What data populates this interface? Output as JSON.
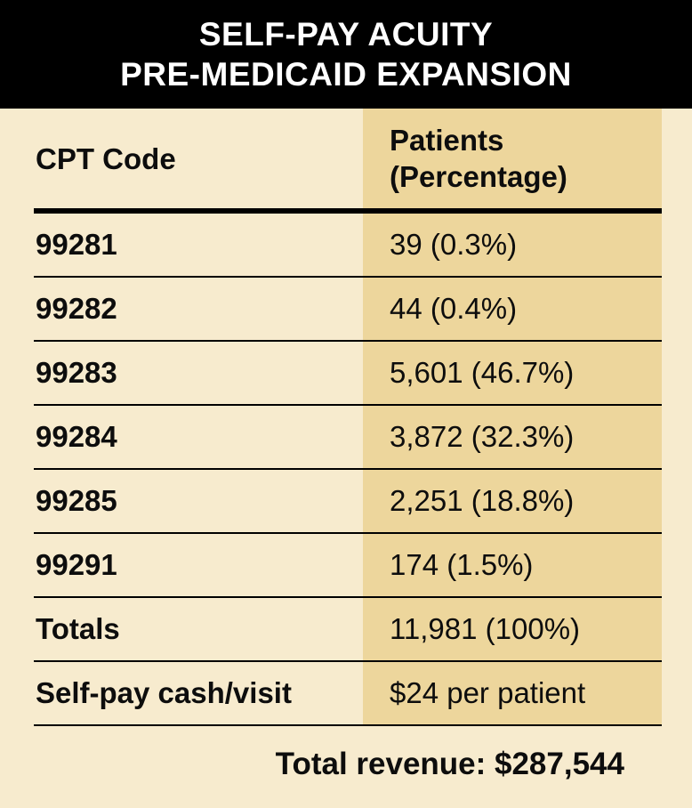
{
  "title": {
    "line1": "SELF-PAY ACUITY",
    "line2": "PRE-MEDICAID EXPANSION"
  },
  "table": {
    "columns": [
      "CPT Code",
      "Patients (Percentage)"
    ],
    "rows": [
      {
        "label": "99281",
        "value": "39 (0.3%)"
      },
      {
        "label": "99282",
        "value": "44 (0.4%)"
      },
      {
        "label": "99283",
        "value": "5,601 (46.7%)"
      },
      {
        "label": "99284",
        "value": "3,872 (32.3%)"
      },
      {
        "label": "99285",
        "value": "2,251 (18.8%)"
      },
      {
        "label": "99291",
        "value": "174 (1.5%)"
      },
      {
        "label": "Totals",
        "value": "11,981 (100%)"
      },
      {
        "label": "Self-pay cash/visit",
        "value": "$24 per patient"
      }
    ],
    "footer": "Total revenue: $287,544"
  },
  "colors": {
    "title_bg": "#000000",
    "title_text": "#ffffff",
    "page_bg": "#f7ebce",
    "value_column_bg": "#edd69c",
    "rule": "#000000"
  },
  "chart_data": {
    "type": "table",
    "title": "SELF-PAY ACUITY PRE-MEDICAID EXPANSION",
    "columns": [
      "CPT Code",
      "Patients (Percentage)"
    ],
    "rows": [
      {
        "cpt_code": "99281",
        "patients": 39,
        "percentage": 0.3
      },
      {
        "cpt_code": "99282",
        "patients": 44,
        "percentage": 0.4
      },
      {
        "cpt_code": "99283",
        "patients": 5601,
        "percentage": 46.7
      },
      {
        "cpt_code": "99284",
        "patients": 3872,
        "percentage": 32.3
      },
      {
        "cpt_code": "99285",
        "patients": 2251,
        "percentage": 18.8
      },
      {
        "cpt_code": "99291",
        "patients": 174,
        "percentage": 1.5
      }
    ],
    "totals": {
      "patients": 11981,
      "percentage": 100
    },
    "self_pay_cash_per_visit_usd": 24,
    "total_revenue_usd": 287544
  }
}
